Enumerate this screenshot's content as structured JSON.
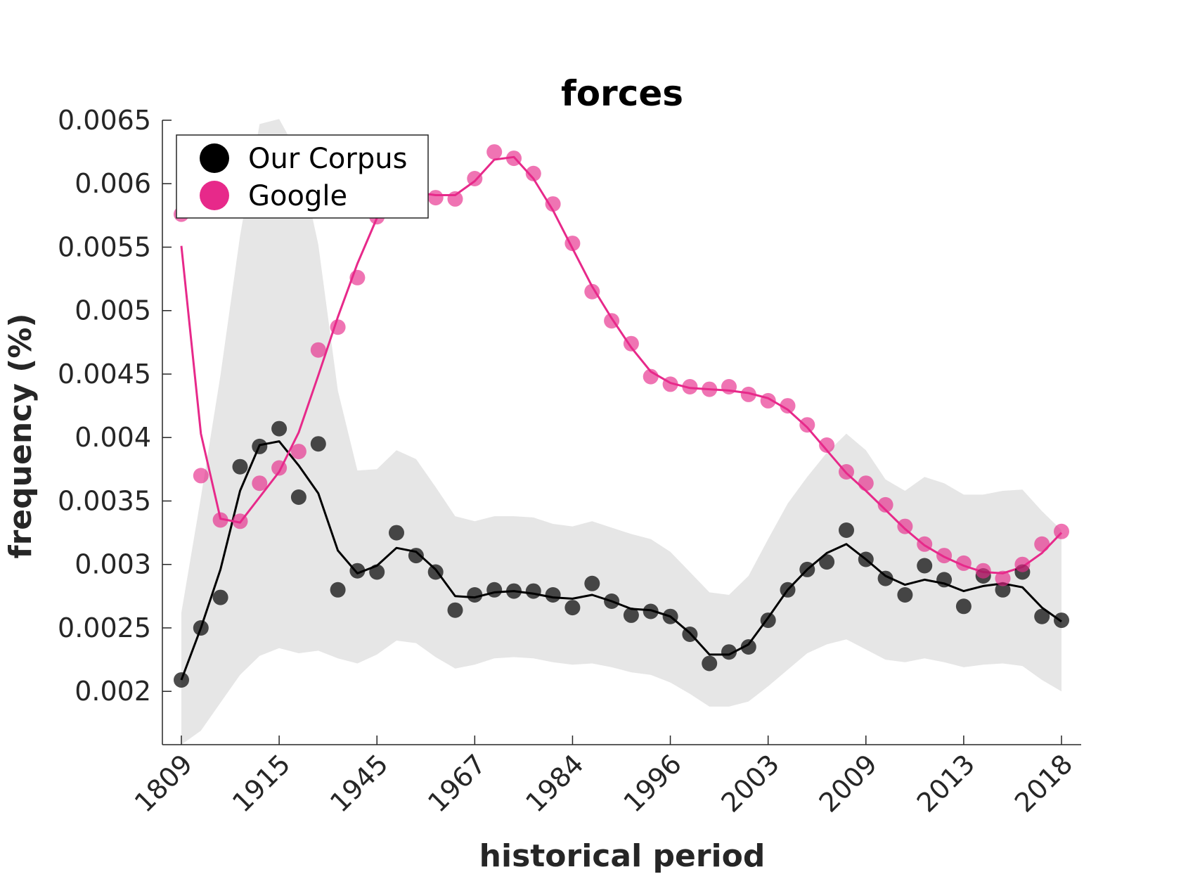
{
  "chart_data": {
    "type": "line",
    "title": "forces",
    "xlabel": "historical period",
    "ylabel": "frequency (%)",
    "ylim": [
      0.00158,
      0.0065
    ],
    "yticks": [
      "0.002",
      "0.0025",
      "0.003",
      "0.0035",
      "0.004",
      "0.0045",
      "0.005",
      "0.0055",
      "0.006",
      "0.0065"
    ],
    "xticks": [
      "1809",
      "1915",
      "1945",
      "1967",
      "1984",
      "1996",
      "2003",
      "2009",
      "2013",
      "2018"
    ],
    "n_points": 46,
    "grid": false,
    "legend_position": "top-left",
    "series": [
      {
        "name": "Our Corpus",
        "color": "#000000",
        "points": [
          0.00209,
          0.0025,
          0.00274,
          0.00377,
          0.00393,
          0.00407,
          0.00353,
          0.00395,
          0.0028,
          0.00295,
          0.00294,
          0.00325,
          0.00307,
          0.00294,
          0.00264,
          0.00276,
          0.0028,
          0.00279,
          0.00279,
          0.00276,
          0.00266,
          0.00285,
          0.00271,
          0.0026,
          0.00263,
          0.00259,
          0.00245,
          0.00222,
          0.00231,
          0.00235,
          0.00256,
          0.0028,
          0.00296,
          0.00302,
          0.00327,
          0.00304,
          0.00289,
          0.00276,
          0.00299,
          0.00288,
          0.00267,
          0.00291,
          0.0028,
          0.00294,
          0.00259,
          0.00256
        ],
        "smooth": [
          0.00209,
          0.0025,
          0.00296,
          0.00358,
          0.00394,
          0.00397,
          0.00378,
          0.00356,
          0.00311,
          0.00293,
          0.00299,
          0.00313,
          0.0031,
          0.00296,
          0.00275,
          0.00274,
          0.00278,
          0.00279,
          0.00277,
          0.00274,
          0.00273,
          0.00276,
          0.00271,
          0.00265,
          0.00264,
          0.00259,
          0.00246,
          0.00229,
          0.00229,
          0.00237,
          0.00258,
          0.0028,
          0.00296,
          0.00309,
          0.00316,
          0.00304,
          0.00291,
          0.00284,
          0.00288,
          0.00285,
          0.00279,
          0.00283,
          0.00285,
          0.00282,
          0.00266,
          0.00255
        ],
        "band_upper": [
          0.00262,
          0.00353,
          0.00449,
          0.00559,
          0.00647,
          0.00651,
          0.00623,
          0.00552,
          0.00437,
          0.00374,
          0.00375,
          0.0039,
          0.00383,
          0.00361,
          0.00338,
          0.00334,
          0.00338,
          0.00338,
          0.00337,
          0.00332,
          0.0033,
          0.00334,
          0.00329,
          0.00324,
          0.0032,
          0.0031,
          0.00294,
          0.00278,
          0.00276,
          0.00291,
          0.0032,
          0.00348,
          0.00369,
          0.00388,
          0.00403,
          0.0039,
          0.00367,
          0.00358,
          0.00369,
          0.00364,
          0.00355,
          0.00355,
          0.00358,
          0.00359,
          0.00342,
          0.00327
        ],
        "band_lower": [
          0.00158,
          0.00169,
          0.00191,
          0.00213,
          0.00228,
          0.00234,
          0.0023,
          0.00232,
          0.00226,
          0.00222,
          0.00229,
          0.0024,
          0.00238,
          0.00227,
          0.00218,
          0.00221,
          0.00226,
          0.00227,
          0.00226,
          0.00223,
          0.00221,
          0.00222,
          0.00219,
          0.00215,
          0.00213,
          0.00207,
          0.00198,
          0.00188,
          0.00188,
          0.00192,
          0.00204,
          0.00217,
          0.0023,
          0.00237,
          0.00241,
          0.00233,
          0.00225,
          0.00223,
          0.00226,
          0.00223,
          0.00219,
          0.00221,
          0.00222,
          0.0022,
          0.00209,
          0.002
        ]
      },
      {
        "name": "Google",
        "color": "#e7298a",
        "points": [
          0.00576,
          0.0037,
          0.00335,
          0.00334,
          0.00364,
          0.00376,
          0.00389,
          0.00469,
          0.00487,
          0.00526,
          0.00574,
          0.00594,
          0.00592,
          0.00589,
          0.00588,
          0.00604,
          0.00625,
          0.0062,
          0.00608,
          0.00584,
          0.00553,
          0.00515,
          0.00492,
          0.00474,
          0.00448,
          0.00442,
          0.0044,
          0.00438,
          0.0044,
          0.00434,
          0.00429,
          0.00425,
          0.0041,
          0.00394,
          0.00373,
          0.00364,
          0.00347,
          0.0033,
          0.00316,
          0.00307,
          0.00301,
          0.00295,
          0.00289,
          0.003,
          0.00316,
          0.00326
        ],
        "smooth": [
          0.00551,
          0.00403,
          0.00336,
          0.00333,
          0.00353,
          0.00373,
          0.00404,
          0.00449,
          0.00495,
          0.00537,
          0.00573,
          0.00593,
          0.00593,
          0.00591,
          0.00591,
          0.00602,
          0.00619,
          0.00621,
          0.00604,
          0.00579,
          0.00549,
          0.00519,
          0.00494,
          0.00471,
          0.00452,
          0.00443,
          0.00439,
          0.00438,
          0.00437,
          0.00435,
          0.00431,
          0.00422,
          0.00408,
          0.0039,
          0.00372,
          0.00358,
          0.00343,
          0.00328,
          0.00315,
          0.00306,
          0.00299,
          0.00294,
          0.00293,
          0.00298,
          0.00309,
          0.00325
        ]
      }
    ]
  }
}
